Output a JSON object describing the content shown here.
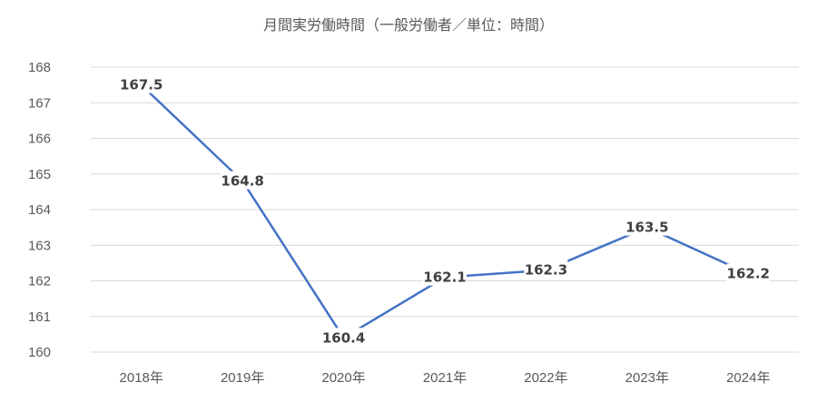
{
  "chart_data": {
    "type": "line",
    "title": "月間実労働時間（一般労働者／単位：時間）",
    "categories": [
      "2018年",
      "2019年",
      "2020年",
      "2021年",
      "2022年",
      "2023年",
      "2024年"
    ],
    "series": [
      {
        "values": [
          167.5,
          164.8,
          160.4,
          162.1,
          162.3,
          163.5,
          162.2
        ]
      }
    ],
    "data_labels": [
      "167.5",
      "164.8",
      "160.4",
      "162.1",
      "162.3",
      "163.5",
      "162.2"
    ],
    "ylim": [
      160,
      168
    ],
    "yticks": [
      "160",
      "161",
      "162",
      "163",
      "164",
      "165",
      "166",
      "167",
      "168"
    ],
    "grid": true,
    "legend": "none",
    "colors": {
      "line": "#4472C4",
      "grid": "#D9D9D9",
      "text": "#595959",
      "label": "#404040"
    }
  }
}
